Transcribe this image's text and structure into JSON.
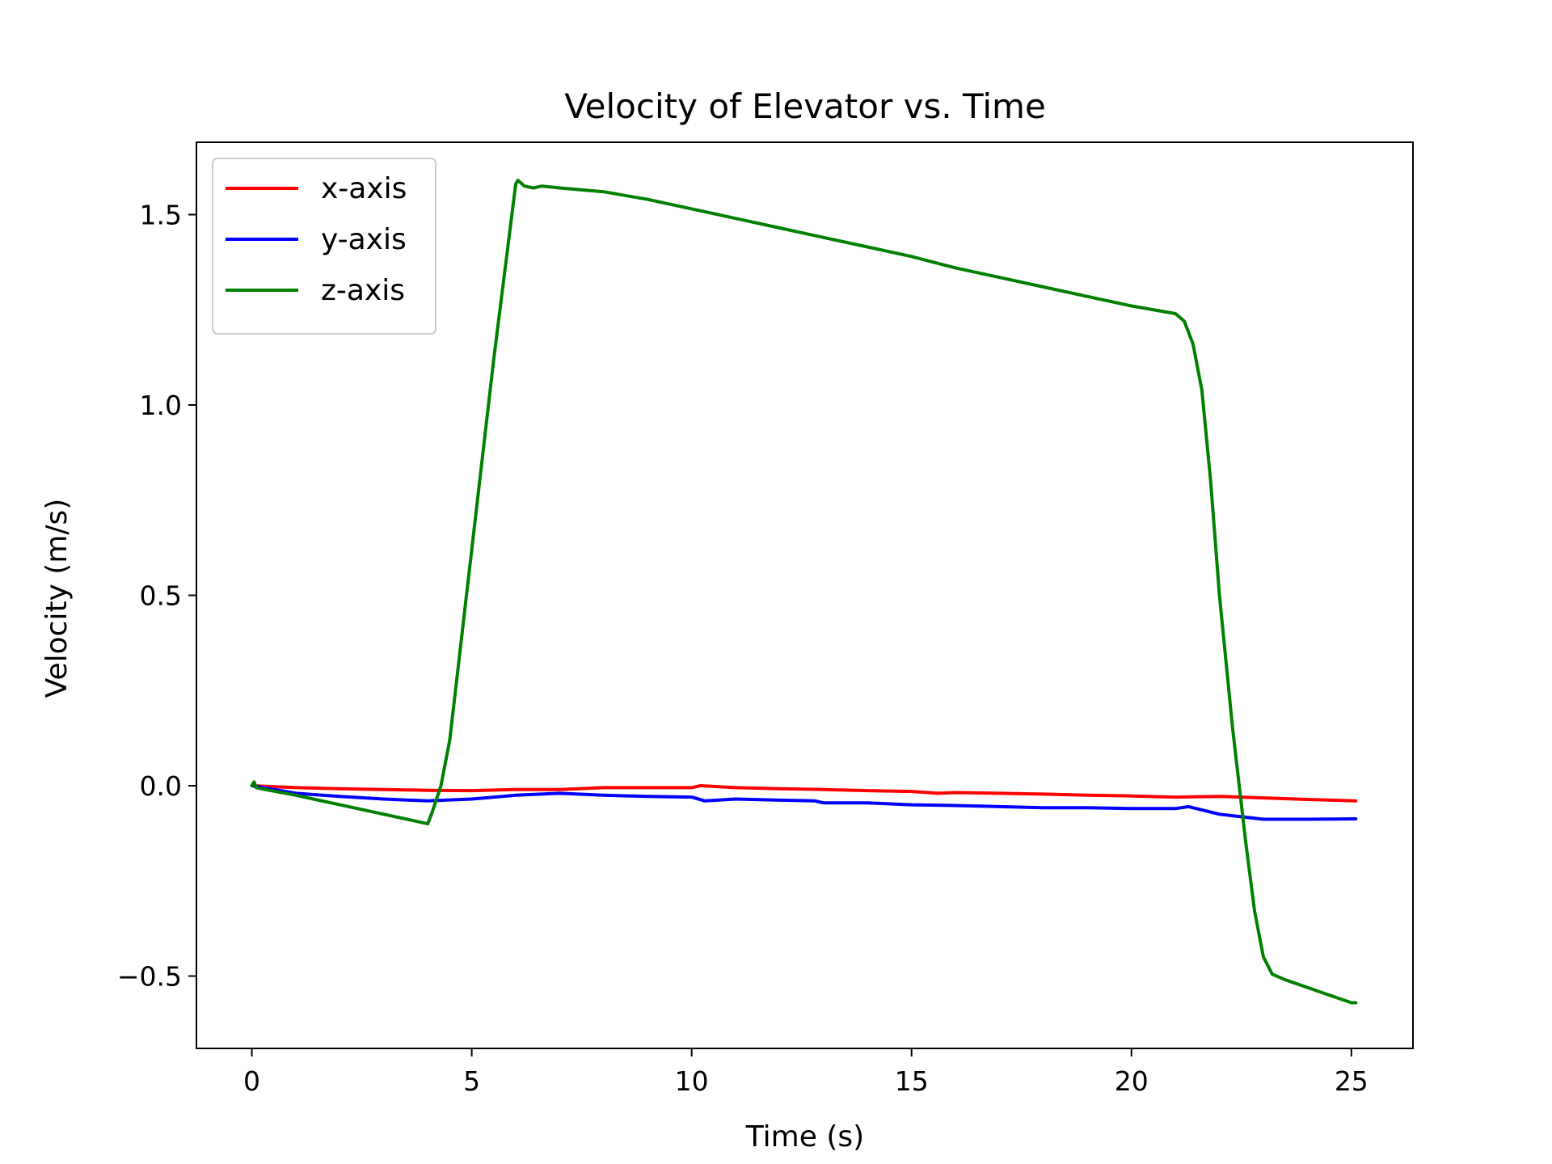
{
  "chart_data": {
    "type": "line",
    "title": "Velocity of Elevator vs. Time",
    "xlabel": "Time (s)",
    "ylabel": "Velocity (m/s)",
    "xlim": [
      -1.26,
      26.4
    ],
    "ylim": [
      -0.69,
      1.69
    ],
    "xticks": [
      0,
      5,
      10,
      15,
      20,
      25
    ],
    "xtick_labels": [
      "0",
      "5",
      "10",
      "15",
      "20",
      "25"
    ],
    "yticks": [
      -0.5,
      0.0,
      0.5,
      1.0,
      1.5
    ],
    "ytick_labels": [
      "−0.5",
      "0.0",
      "0.5",
      "1.0",
      "1.5"
    ],
    "grid": false,
    "legend_position": "top-left",
    "series": [
      {
        "name": "x-axis",
        "color": "#ff0000",
        "x": [
          0,
          1,
          2,
          3,
          4,
          5,
          6,
          7,
          8,
          9,
          10,
          10.2,
          11,
          12,
          13,
          14,
          15,
          15.6,
          16,
          17,
          18,
          19,
          20,
          21,
          22,
          23,
          24,
          25.1
        ],
        "y": [
          0.0,
          -0.005,
          -0.008,
          -0.01,
          -0.012,
          -0.013,
          -0.01,
          -0.01,
          -0.005,
          -0.005,
          -0.005,
          0.0,
          -0.005,
          -0.008,
          -0.01,
          -0.013,
          -0.015,
          -0.02,
          -0.018,
          -0.02,
          -0.022,
          -0.025,
          -0.027,
          -0.03,
          -0.028,
          -0.032,
          -0.036,
          -0.04
        ]
      },
      {
        "name": "y-axis",
        "color": "#0000ff",
        "x": [
          0,
          1,
          2,
          3,
          4,
          5,
          6,
          7,
          8,
          9,
          10,
          10.3,
          11,
          12,
          12.8,
          13,
          14,
          15,
          16,
          17,
          18,
          19,
          20,
          21,
          21.3,
          22,
          23,
          24,
          25.1
        ],
        "y": [
          0.0,
          -0.02,
          -0.028,
          -0.035,
          -0.04,
          -0.035,
          -0.025,
          -0.02,
          -0.025,
          -0.028,
          -0.03,
          -0.04,
          -0.035,
          -0.038,
          -0.04,
          -0.045,
          -0.045,
          -0.05,
          -0.052,
          -0.055,
          -0.058,
          -0.058,
          -0.06,
          -0.06,
          -0.055,
          -0.075,
          -0.088,
          -0.088,
          -0.087
        ]
      },
      {
        "name": "z-axis",
        "color": "#008000",
        "x": [
          0,
          0.05,
          0.1,
          0.3,
          1,
          2,
          3,
          4,
          4.1,
          4.3,
          4.5,
          5,
          5.5,
          6,
          6.05,
          6.2,
          6.4,
          6.6,
          7,
          8,
          9,
          10,
          11,
          12,
          13,
          14,
          15,
          16,
          17,
          18,
          19,
          20,
          21,
          21.2,
          21.4,
          21.6,
          21.8,
          22,
          22.3,
          22.6,
          22.8,
          23,
          23.2,
          23.5,
          24,
          24.5,
          25,
          25.1
        ],
        "y": [
          0.0,
          0.01,
          -0.005,
          -0.01,
          -0.025,
          -0.05,
          -0.075,
          -0.1,
          -0.07,
          0.0,
          0.12,
          0.62,
          1.12,
          1.58,
          1.59,
          1.575,
          1.57,
          1.575,
          1.57,
          1.56,
          1.54,
          1.515,
          1.49,
          1.465,
          1.44,
          1.415,
          1.39,
          1.36,
          1.335,
          1.31,
          1.285,
          1.26,
          1.24,
          1.22,
          1.16,
          1.04,
          0.8,
          0.5,
          0.15,
          -0.15,
          -0.33,
          -0.45,
          -0.495,
          -0.51,
          -0.53,
          -0.55,
          -0.57,
          -0.57
        ]
      }
    ]
  }
}
